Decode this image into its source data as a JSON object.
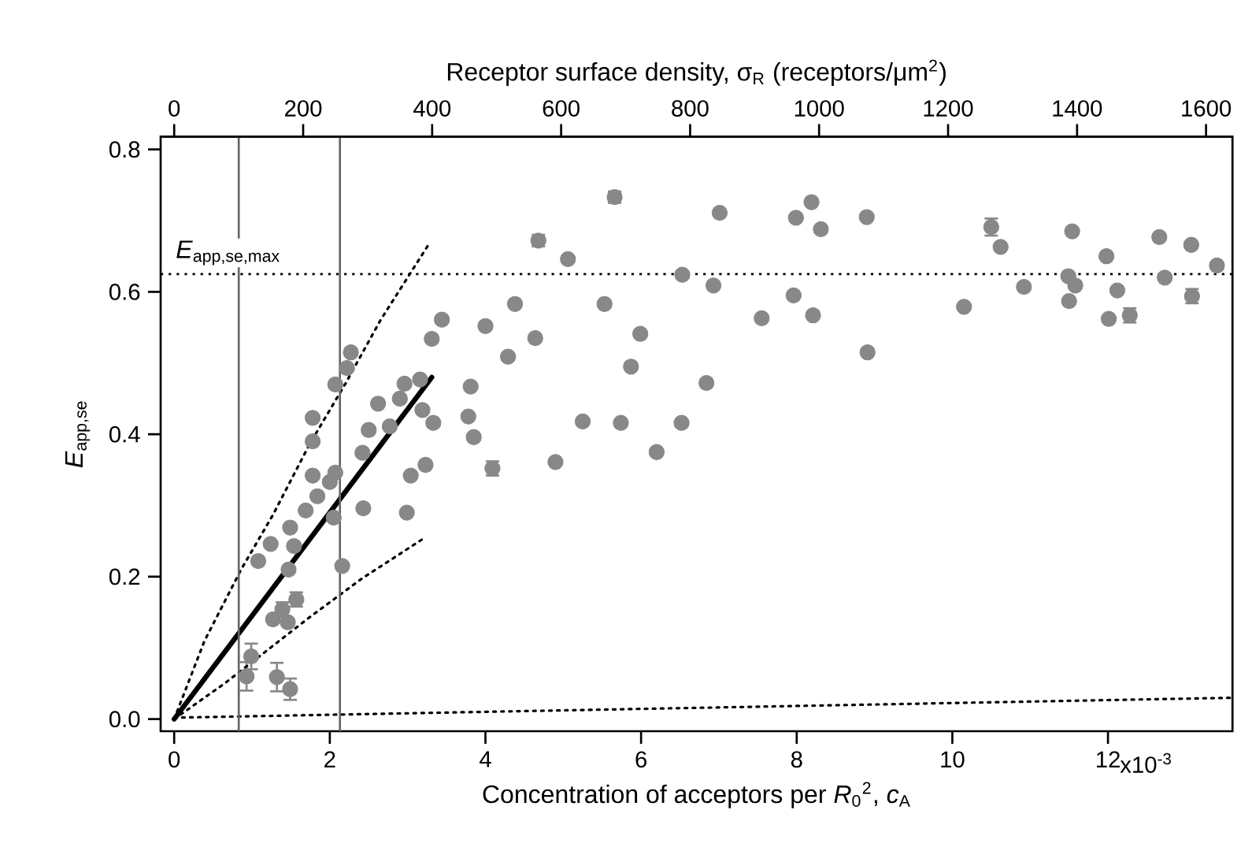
{
  "chart_data": {
    "type": "scatter",
    "xlabel": "Concentration of acceptors per *R*$_{0}$$^{2}$, *c*$_{A}$",
    "ylabel": "*E*$_{app,se}$",
    "x2label": "Receptor surface density, σ$_{R}$ (receptors/μm$^{2}$)",
    "xlim": [
      -0.174,
      13.6
    ],
    "xticks": [
      0,
      2,
      4,
      6,
      8,
      10,
      12
    ],
    "annotations": [
      "x10$^{-3}$"
    ],
    "x2lim": [
      -21,
      1641
    ],
    "x2ticks": [
      0,
      200,
      400,
      600,
      800,
      1000,
      1200,
      1400,
      1600
    ],
    "ylim": [
      -0.017,
      0.818
    ],
    "yticks": [
      {
        "value": 0,
        "label": "0.0"
      },
      0.2,
      0.4,
      0.6,
      0.8
    ],
    "series": [
      {
        "color": "#888888",
        "x": [
          3.44,
          3.31,
          2.27,
          2.22,
          2.07,
          2.96,
          3.16,
          2.62,
          2.9,
          1.78,
          2.5,
          2.77,
          3.19,
          3.33,
          1.78,
          2.42,
          3.23,
          3.04,
          1.78,
          2.07,
          2.0,
          1.84,
          1.69,
          2.05,
          2.43,
          2.99,
          1.49,
          1.24,
          1.54,
          1.08,
          1.47,
          2.16,
          1.57,
          1.39,
          1.27,
          1.46,
          0.99,
          0.93,
          1.32,
          1.49,
          5.66,
          4.68,
          5.06,
          7.01,
          8.19,
          7.99,
          8.31,
          6.53,
          6.93,
          4.38,
          5.53,
          4.0,
          4.64,
          4.29,
          5.99,
          5.87,
          3.81,
          6.84,
          3.78,
          3.85,
          5.25,
          5.74,
          6.52,
          4.09,
          4.9,
          6.2,
          7.55,
          7.96,
          8.21,
          8.9,
          8.91,
          10.5,
          10.62,
          10.15,
          10.92,
          11.54,
          11.49,
          11.58,
          11.5,
          11.98,
          12.12,
          12.01,
          12.28,
          12.66,
          12.73,
          13.07,
          13.08,
          13.4
        ],
        "values": [
          0.561,
          0.534,
          0.515,
          0.493,
          0.47,
          0.471,
          0.477,
          0.443,
          0.45,
          0.423,
          0.406,
          0.411,
          0.434,
          0.416,
          0.39,
          0.374,
          0.357,
          0.342,
          0.342,
          0.346,
          0.333,
          0.313,
          0.293,
          0.283,
          0.296,
          0.29,
          0.269,
          0.246,
          0.243,
          0.222,
          0.21,
          0.215,
          0.168,
          0.154,
          0.14,
          0.136,
          0.088,
          0.06,
          0.059,
          0.042,
          0.733,
          0.672,
          0.646,
          0.711,
          0.726,
          0.704,
          0.688,
          0.624,
          0.609,
          0.583,
          0.583,
          0.552,
          0.535,
          0.509,
          0.541,
          0.495,
          0.467,
          0.472,
          0.425,
          0.396,
          0.418,
          0.416,
          0.416,
          0.352,
          0.361,
          0.375,
          0.563,
          0.595,
          0.567,
          0.705,
          0.515,
          0.691,
          0.663,
          0.579,
          0.607,
          0.685,
          0.622,
          0.609,
          0.587,
          0.65,
          0.602,
          0.562,
          0.567,
          0.677,
          0.62,
          0.666,
          0.594,
          0.637
        ],
        "errors": [
          null,
          null,
          null,
          null,
          null,
          null,
          null,
          null,
          null,
          null,
          null,
          null,
          null,
          null,
          null,
          null,
          null,
          null,
          null,
          null,
          null,
          null,
          null,
          null,
          null,
          null,
          null,
          null,
          null,
          null,
          null,
          null,
          0.01,
          0.01,
          null,
          null,
          0.018,
          0.02,
          0.02,
          0.015,
          0.008,
          0.008,
          null,
          null,
          null,
          null,
          null,
          null,
          null,
          null,
          null,
          null,
          null,
          null,
          null,
          null,
          null,
          null,
          null,
          null,
          null,
          null,
          null,
          0.01,
          null,
          null,
          null,
          null,
          null,
          null,
          null,
          0.012,
          null,
          null,
          null,
          null,
          null,
          null,
          null,
          null,
          null,
          null,
          0.01,
          null,
          null,
          null,
          0.01,
          null
        ]
      },
      {
        "type": "line",
        "color": "#000000",
        "line_style": "solid",
        "marker": "none",
        "x": [
          0,
          3.31
        ],
        "values": [
          0,
          0.48
        ]
      },
      {
        "type": "line",
        "color": "#000000",
        "line_style": "dotted",
        "marker": "none",
        "x": [
          0,
          0.39,
          0.86,
          1.27,
          1.74,
          2.2,
          2.65,
          3.29
        ],
        "values": [
          0,
          0.11,
          0.21,
          0.287,
          0.386,
          0.471,
          0.56,
          0.67
        ]
      },
      {
        "type": "line",
        "color": "#000000",
        "line_style": "dotted",
        "marker": "none",
        "x": [
          0,
          0.66,
          1.74,
          2.42,
          3.21
        ],
        "values": [
          0,
          0.051,
          0.143,
          0.198,
          0.254
        ]
      },
      {
        "type": "line",
        "color": "#000000",
        "line_style": "dotted",
        "marker": "none",
        "x": [
          0,
          13.6
        ],
        "values": [
          0.002,
          0.03
        ]
      }
    ],
    "ref_lines": [
      {
        "axis": "y",
        "value": 0.625,
        "label": "*E*$_{app,se,max}$",
        "color": "#000000",
        "line_style": "dotted"
      },
      {
        "axis": "x",
        "value": 0.83,
        "color": "#666666",
        "line_style": "solid"
      },
      {
        "axis": "x",
        "value": 2.13,
        "color": "#666666",
        "line_style": "solid"
      }
    ]
  }
}
